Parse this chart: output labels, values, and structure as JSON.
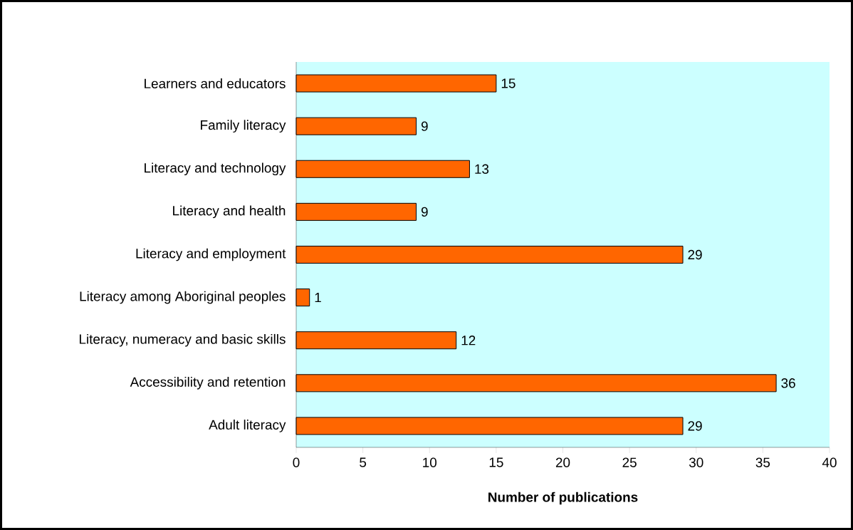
{
  "chart_data": {
    "type": "bar",
    "orientation": "horizontal",
    "xlabel": "Number of publications",
    "categories": [
      "Learners and educators",
      "Family literacy",
      "Literacy and technology",
      "Literacy and health",
      "Literacy and employment",
      "Literacy among Aboriginal peoples",
      "Literacy, numeracy and basic skills",
      "Accessibility and retention",
      "Adult literacy"
    ],
    "values": [
      15,
      9,
      13,
      9,
      29,
      1,
      12,
      36,
      29
    ],
    "color": "#ff6600",
    "xlim": [
      0,
      40
    ],
    "xticks": [
      0,
      5,
      10,
      15,
      20,
      25,
      30,
      35,
      40
    ],
    "data_labels": true,
    "grid": false
  }
}
